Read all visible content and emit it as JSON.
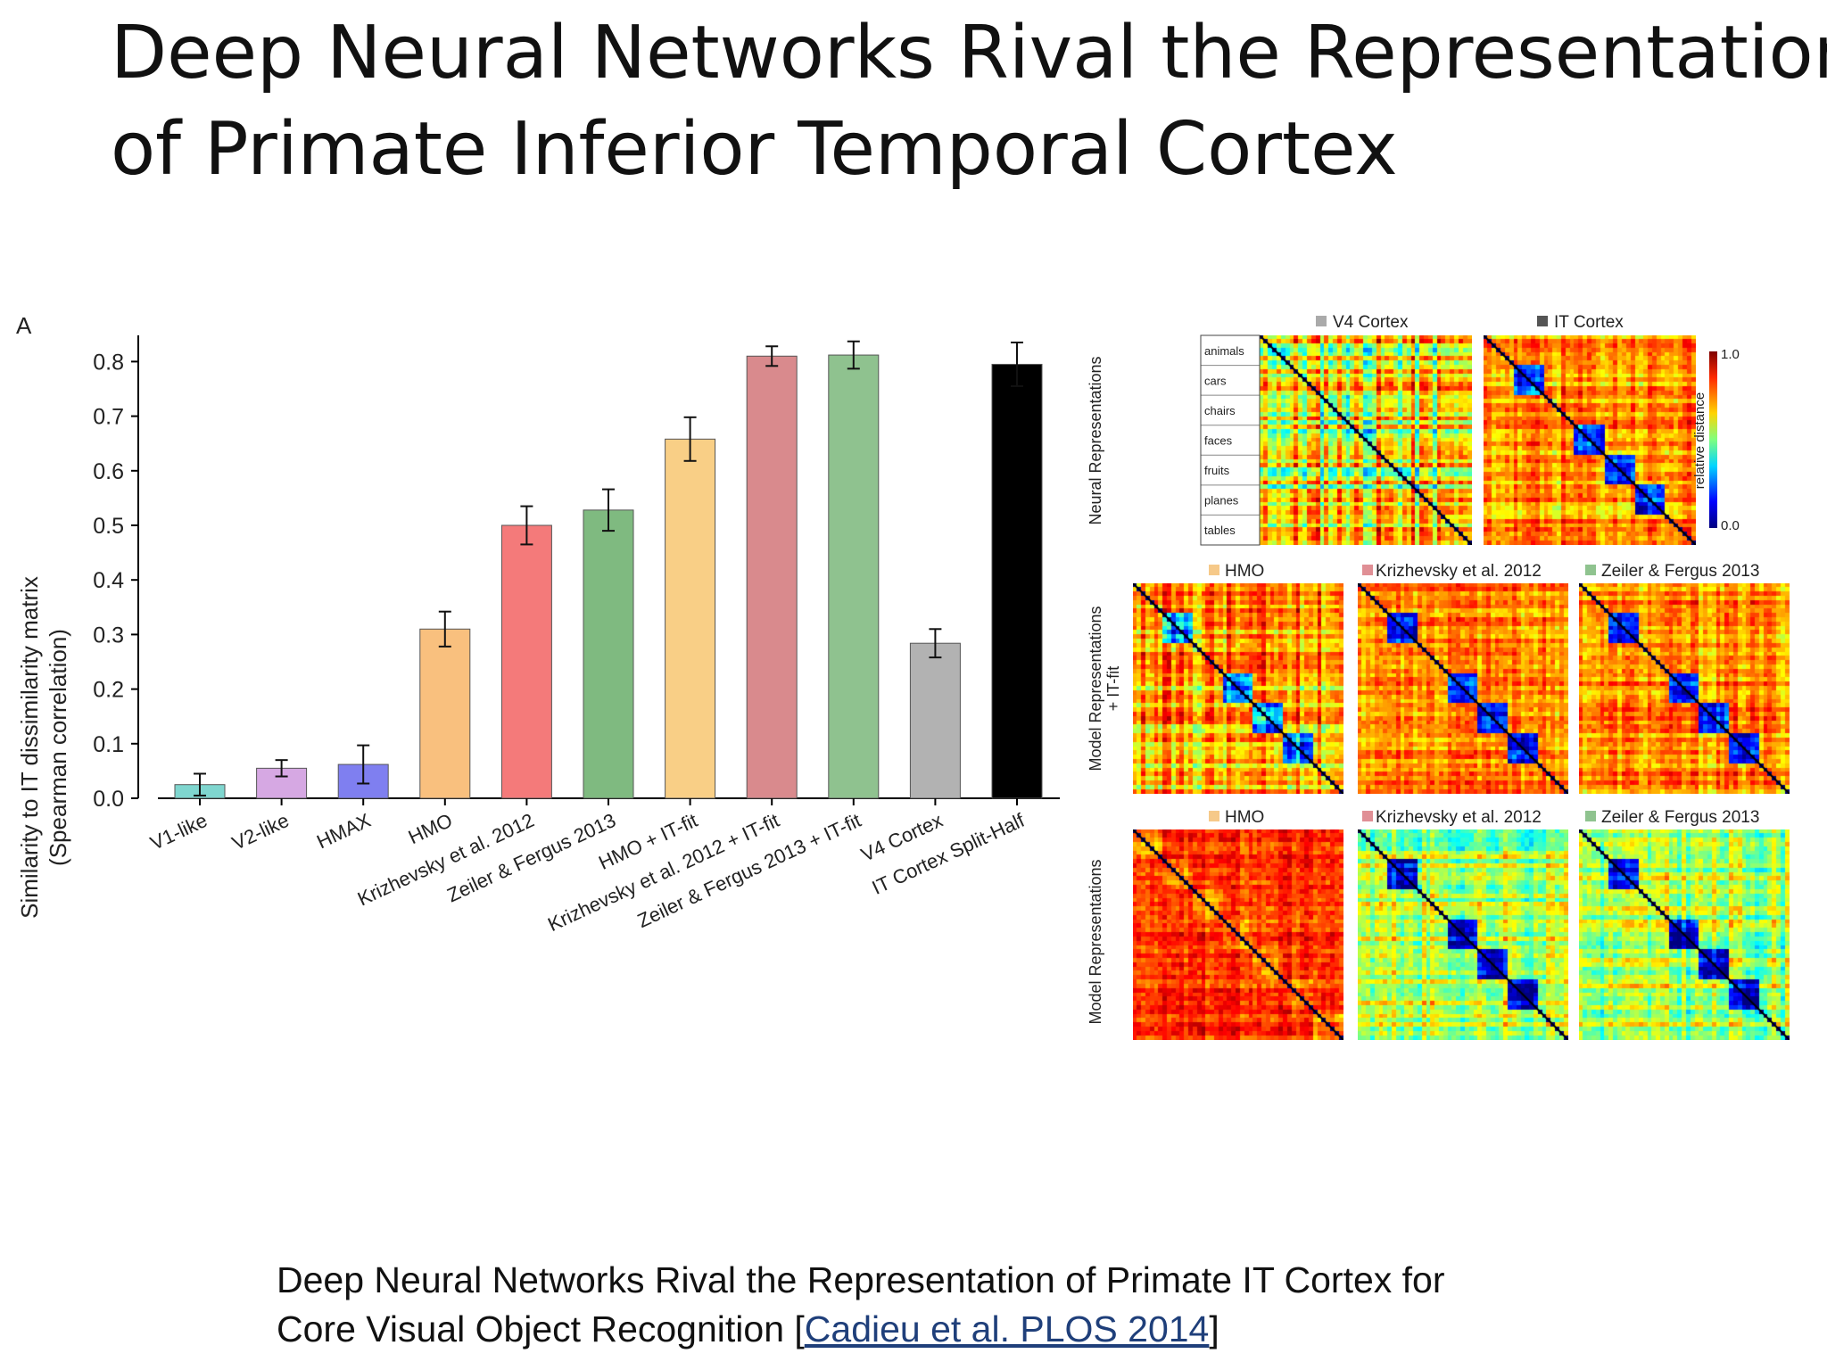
{
  "slide": {
    "title_line1": "Deep Neural Networks Rival the Representation",
    "title_line2": "of Primate Inferior Temporal Cortex",
    "caption_line1": "Deep Neural Networks Rival the Representation of Primate IT Cortex for",
    "caption_line2_prefix": "Core Visual Object Recognition [",
    "caption_link": "Cadieu et al. PLOS 2014",
    "caption_line2_suffix": "]"
  },
  "chart_data": [
    {
      "type": "bar",
      "panel_label": "A",
      "ylabel_line1": "Similarity to IT dissimilarity matrix",
      "ylabel_line2": "(Spearman correlation)",
      "xlabel": "",
      "ylim": [
        0,
        0.85
      ],
      "yticks": [
        "0.0",
        "0.1",
        "0.2",
        "0.3",
        "0.4",
        "0.5",
        "0.6",
        "0.7",
        "0.8"
      ],
      "categories": [
        "V1-like",
        "V2-like",
        "HMAX",
        "HMO",
        "Krizhevsky et al. 2012",
        "Zeiler & Fergus 2013",
        "HMO + IT-fit",
        "Krizhevsky et al. 2012 + IT-fit",
        "Zeiler & Fergus 2013 + IT-fit",
        "V4 Cortex",
        "IT Cortex Split-Half"
      ],
      "values": [
        0.025,
        0.055,
        0.062,
        0.31,
        0.5,
        0.528,
        0.658,
        0.81,
        0.812,
        0.284,
        0.795
      ],
      "errors": [
        0.02,
        0.015,
        0.035,
        0.032,
        0.035,
        0.038,
        0.04,
        0.018,
        0.025,
        0.026,
        0.04
      ],
      "colors": [
        "#7fd6cf",
        "#d6a8e3",
        "#7f7ff0",
        "#f9c07e",
        "#f47a7a",
        "#7fba80",
        "#f9cf86",
        "#d98a8d",
        "#8fc28f",
        "#b2b2b2",
        "#000000"
      ],
      "grid": false
    },
    {
      "type": "heatmap",
      "description_labels": {
        "row_neural": "Neural Representations",
        "row_model_itfit_line1": "Model Representations",
        "row_model_itfit_line2": "+ IT-fit",
        "row_model": "Model Representations"
      },
      "categories": [
        "animals",
        "cars",
        "chairs",
        "faces",
        "fruits",
        "planes",
        "tables"
      ],
      "colorbar": {
        "label": "relative distance",
        "max_label": "1.0",
        "min_label": "0.0"
      },
      "panels": [
        {
          "name": "V4 Cortex",
          "legend_color": "#aaaaaa",
          "row": "neural"
        },
        {
          "name": "IT Cortex",
          "legend_color": "#555555",
          "row": "neural"
        },
        {
          "name": "HMO",
          "legend_color": "#f6c989",
          "row": "itfit"
        },
        {
          "name": "Krizhevsky et al. 2012",
          "legend_color": "#e08f95",
          "row": "itfit"
        },
        {
          "name": "Zeiler & Fergus 2013",
          "legend_color": "#8fc38f",
          "row": "itfit"
        },
        {
          "name": "HMO",
          "legend_color": "#f6c989",
          "row": "model"
        },
        {
          "name": "Krizhevsky et al. 2012",
          "legend_color": "#e08f95",
          "row": "model"
        },
        {
          "name": "Zeiler & Fergus 2013",
          "legend_color": "#8fc38f",
          "row": "model"
        }
      ]
    }
  ]
}
